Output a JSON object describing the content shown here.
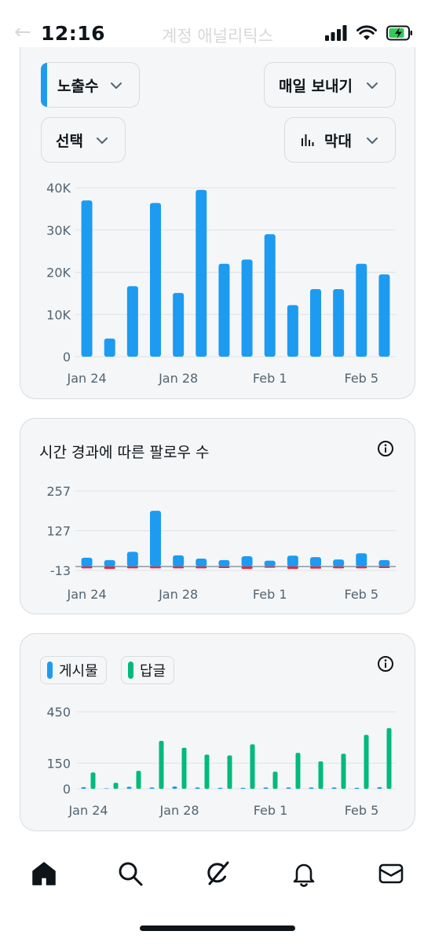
{
  "status_bar": {
    "time": "12:16"
  },
  "header": {
    "ghost_title": "계정 애널리틱스"
  },
  "impressions_card": {
    "metric_label": "노출수",
    "export_label": "매일 보내기",
    "select_label": "선택",
    "chart_type_label": "막대",
    "accent_color": "#1d9bf0",
    "chart_data": {
      "type": "bar",
      "x_tick_labels": [
        "Jan 24",
        "Jan 28",
        "Feb 1",
        "Feb 5"
      ],
      "y_tick_labels": [
        "40K",
        "30K",
        "20K",
        "10K",
        "0"
      ],
      "ylim": [
        0,
        40000
      ],
      "series": [
        {
          "values": [
            37000,
            4300,
            16700,
            36400,
            15100,
            39500,
            22000,
            23000,
            29000,
            12200,
            16000,
            16000,
            22000,
            19500
          ]
        }
      ]
    }
  },
  "followers_card": {
    "title": "시간 경과에 따른 팔로우 수",
    "chart_data": {
      "type": "bar",
      "x_tick_labels": [
        "Jan 24",
        "Jan 28",
        "Feb 1",
        "Feb 5"
      ],
      "y_tick_labels": [
        "257",
        "127",
        "-13"
      ],
      "ylim": [
        -13,
        257
      ],
      "series": [
        {
          "color": "#1d9bf0",
          "values": [
            30,
            22,
            50,
            190,
            38,
            27,
            22,
            35,
            20,
            37,
            32,
            24,
            45,
            22
          ]
        },
        {
          "color": "#f4212e",
          "values": [
            -6,
            -8,
            -6,
            -6,
            -6,
            -6,
            -5,
            -8,
            -4,
            -8,
            -7,
            -6,
            -6,
            -5
          ]
        }
      ]
    }
  },
  "posts_replies_card": {
    "legend": [
      {
        "label": "게시물",
        "color": "#1d9bf0"
      },
      {
        "label": "답글",
        "color": "#00ba7c"
      }
    ],
    "chart_data": {
      "type": "bar",
      "x_tick_labels": [
        "Jan 24",
        "Jan 28",
        "Feb 1",
        "Feb 5"
      ],
      "y_tick_labels": [
        "450",
        "150",
        "0"
      ],
      "ylim": [
        0,
        450
      ],
      "series": [
        {
          "name": "게시물",
          "color": "#1d9bf0",
          "values": [
            10,
            3,
            12,
            8,
            14,
            8,
            6,
            6,
            8,
            8,
            8,
            8,
            6,
            10
          ]
        },
        {
          "name": "답글",
          "color": "#00ba7c",
          "values": [
            95,
            35,
            105,
            280,
            240,
            200,
            195,
            260,
            100,
            210,
            160,
            205,
            315,
            355
          ]
        }
      ]
    }
  },
  "bottom_nav": {
    "items": [
      "home-icon",
      "search-icon",
      "grok-icon",
      "bell-icon",
      "mail-icon"
    ]
  }
}
